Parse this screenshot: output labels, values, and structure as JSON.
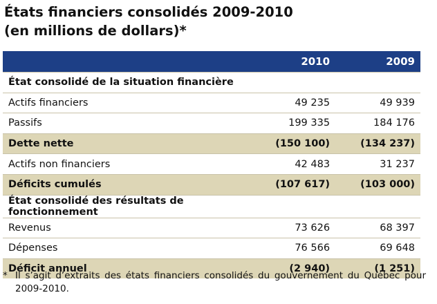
{
  "title_line1": "États financiers consolidés 2009-2010",
  "title_line2": "(en millions de dollars)*",
  "header": {
    "year1": "2010",
    "year2": "2009"
  },
  "rows": [
    {
      "label": "État consolidé de la situation financière",
      "v2010": "",
      "v2009": "",
      "type": "section"
    },
    {
      "label": "Actifs financiers",
      "v2010": "49 235",
      "v2009": "49 939",
      "type": "plain"
    },
    {
      "label": "Passifs",
      "v2010": "199 335",
      "v2009": "184 176",
      "type": "plain"
    },
    {
      "label": "Dette nette",
      "v2010": "(150 100)",
      "v2009": "(134 237)",
      "type": "total"
    },
    {
      "label": "Actifs non financiers",
      "v2010": "42 483",
      "v2009": "31 237",
      "type": "plain"
    },
    {
      "label": "Déficits cumulés",
      "v2010": "(107 617)",
      "v2009": "(103 000)",
      "type": "total"
    },
    {
      "label": "État consolidé des résultats de fonctionnement",
      "v2010": "",
      "v2009": "",
      "type": "section"
    },
    {
      "label": "Revenus",
      "v2010": "73 626",
      "v2009": "68 397",
      "type": "plain"
    },
    {
      "label": "Dépenses",
      "v2010": "76 566",
      "v2009": "69 648",
      "type": "plain"
    },
    {
      "label": "Déficit annuel",
      "v2010": "(2 940)",
      "v2009": "(1 251)",
      "type": "total"
    }
  ],
  "footnote": {
    "marker": "*",
    "text": "Il s’agit d’extraits des états financiers consolidés du gouvernement du Québec pour 2009-2010."
  },
  "colors": {
    "header_bg": "#1d3f86",
    "total_bg": "#ddd6b6"
  }
}
